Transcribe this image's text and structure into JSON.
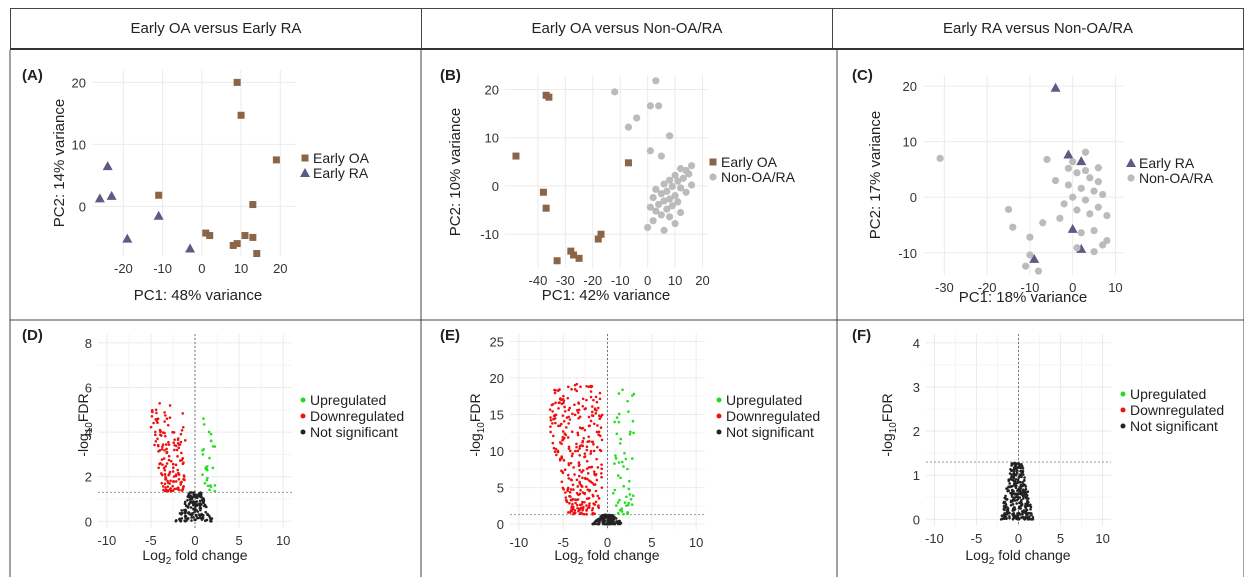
{
  "header": {
    "columns": [
      "Early OA versus Early RA",
      "Early OA versus Non-OA/RA",
      "Early RA versus Non-OA/RA"
    ]
  },
  "colors": {
    "early_oa": "#8B6548",
    "early_ra": "#5E5A85",
    "non_oa_ra": "#BBBBBB",
    "upregulated": "#22DD22",
    "downregulated": "#EE1111",
    "not_significant": "#222222"
  },
  "chart_data": [
    {
      "panel": "(A)",
      "type": "scatter",
      "xlabel": "PC1: 48% variance",
      "ylabel": "PC2: 14% variance",
      "xlim": [
        -28,
        24
      ],
      "ylim": [
        -8,
        22
      ],
      "xticks": [
        -20,
        -10,
        0,
        10,
        20
      ],
      "yticks": [
        0,
        10,
        20
      ],
      "grid": true,
      "legend": "right",
      "series": [
        {
          "name": "Early OA",
          "marker": "square",
          "color_key": "early_oa",
          "points": [
            [
              9,
              20
            ],
            [
              10,
              14.7
            ],
            [
              19,
              7.5
            ],
            [
              -11,
              1.8
            ],
            [
              13,
              0.3
            ],
            [
              1,
              -4.3
            ],
            [
              2,
              -4.7
            ],
            [
              11,
              -4.7
            ],
            [
              13,
              -5
            ],
            [
              9,
              -6
            ],
            [
              8,
              -6.3
            ],
            [
              14,
              -7.6
            ]
          ]
        },
        {
          "name": "Early RA",
          "marker": "triangle",
          "color_key": "early_ra",
          "points": [
            [
              -24,
              6.5
            ],
            [
              -23,
              1.7
            ],
            [
              -26,
              1.3
            ],
            [
              -11,
              -1.5
            ],
            [
              -19,
              -5.2
            ],
            [
              -3,
              -6.8
            ]
          ]
        }
      ]
    },
    {
      "panel": "(B)",
      "type": "scatter",
      "xlabel": "PC1: 42% variance",
      "ylabel": "PC2: 10% variance",
      "xlim": [
        -52,
        22
      ],
      "ylim": [
        -17,
        23
      ],
      "xticks": [
        -40,
        -30,
        -20,
        -10,
        0,
        10,
        20
      ],
      "yticks": [
        -10,
        0,
        10,
        20
      ],
      "grid": true,
      "legend": "right",
      "series": [
        {
          "name": "Early OA",
          "marker": "square",
          "color_key": "early_oa",
          "points": [
            [
              -37,
              18.8
            ],
            [
              -36,
              18.4
            ],
            [
              -48,
              6.2
            ],
            [
              -7,
              4.8
            ],
            [
              -38,
              -1.3
            ],
            [
              -37,
              -4.6
            ],
            [
              -17,
              -10
            ],
            [
              -18,
              -11
            ],
            [
              -28,
              -13.5
            ],
            [
              -27,
              -14.3
            ],
            [
              -33,
              -15.5
            ],
            [
              -25,
              -15
            ]
          ]
        },
        {
          "name": "Non-OA/RA",
          "marker": "circle",
          "color_key": "non_oa_ra",
          "points": [
            [
              3,
              21.8
            ],
            [
              -12,
              19.5
            ],
            [
              1,
              16.6
            ],
            [
              4,
              16.6
            ],
            [
              -4,
              14.1
            ],
            [
              -7,
              12.2
            ],
            [
              8,
              10.4
            ],
            [
              1,
              7.3
            ],
            [
              5,
              6.2
            ],
            [
              16,
              4.2
            ],
            [
              12,
              3.6
            ],
            [
              14,
              3.2
            ],
            [
              15,
              2.5
            ],
            [
              10,
              2.2
            ],
            [
              13,
              1.6
            ],
            [
              8,
              1.2
            ],
            [
              11,
              1
            ],
            [
              6,
              0.4
            ],
            [
              16,
              0.2
            ],
            [
              9,
              -0.1
            ],
            [
              12,
              -0.4
            ],
            [
              3,
              -0.7
            ],
            [
              7,
              -1.1
            ],
            [
              14,
              -1.3
            ],
            [
              5,
              -1.6
            ],
            [
              10,
              -2
            ],
            [
              2,
              -2.4
            ],
            [
              8,
              -2.7
            ],
            [
              6,
              -3.1
            ],
            [
              11,
              -3.3
            ],
            [
              4,
              -3.8
            ],
            [
              9,
              -4.1
            ],
            [
              1,
              -4.4
            ],
            [
              7,
              -4.8
            ],
            [
              3,
              -5.2
            ],
            [
              12,
              -5.5
            ],
            [
              5,
              -6
            ],
            [
              8,
              -6.4
            ],
            [
              2,
              -7.2
            ],
            [
              10,
              -7.8
            ],
            [
              0,
              -8.6
            ],
            [
              6,
              -9.2
            ]
          ]
        }
      ]
    },
    {
      "panel": "(C)",
      "type": "scatter",
      "xlabel": "PC1: 18% variance",
      "ylabel": "PC2: 17% variance",
      "xlim": [
        -35,
        12
      ],
      "ylim": [
        -14,
        22
      ],
      "xticks": [
        -30,
        -20,
        -10,
        0,
        10
      ],
      "yticks": [
        -10,
        0,
        10,
        20
      ],
      "grid": true,
      "legend": "right",
      "series": [
        {
          "name": "Early RA",
          "marker": "triangle",
          "color_key": "early_ra",
          "points": [
            [
              -4,
              19.7
            ],
            [
              -1,
              7.7
            ],
            [
              2,
              6.5
            ],
            [
              0,
              -5.7
            ],
            [
              -9,
              -11.1
            ],
            [
              2,
              -9.3
            ]
          ]
        },
        {
          "name": "Non-OA/RA",
          "marker": "circle",
          "color_key": "non_oa_ra",
          "points": [
            [
              -31,
              7
            ],
            [
              -6,
              6.8
            ],
            [
              3,
              8.1
            ],
            [
              -1,
              5.2
            ],
            [
              1,
              4.4
            ],
            [
              4,
              3.5
            ],
            [
              -4,
              3
            ],
            [
              6,
              2.8
            ],
            [
              -1,
              2.2
            ],
            [
              2,
              1.6
            ],
            [
              5,
              1.1
            ],
            [
              7,
              0.5
            ],
            [
              0,
              0
            ],
            [
              3,
              -0.5
            ],
            [
              -2,
              -1.2
            ],
            [
              6,
              -1.8
            ],
            [
              1,
              -2.3
            ],
            [
              4,
              -3
            ],
            [
              8,
              -3.3
            ],
            [
              -3,
              -3.8
            ],
            [
              -15,
              -2.2
            ],
            [
              -14,
              -5.4
            ],
            [
              5,
              -6
            ],
            [
              2,
              -6.4
            ],
            [
              -10,
              -7.2
            ],
            [
              8,
              -7.8
            ],
            [
              7,
              -8.6
            ],
            [
              1,
              -9.1
            ],
            [
              5,
              -9.8
            ],
            [
              -10,
              -10.4
            ],
            [
              -11,
              -12.4
            ],
            [
              -8,
              -13.3
            ],
            [
              -7,
              -4.6
            ],
            [
              0,
              6.4
            ],
            [
              3,
              4.8
            ],
            [
              6,
              5.3
            ]
          ]
        }
      ]
    },
    {
      "panel": "(D)",
      "type": "volcano",
      "xlabel": "Log₂ fold change",
      "ylabel": "-log₁₀FDR",
      "xlim": [
        -11,
        11
      ],
      "ylim": [
        -0.3,
        8.4
      ],
      "xticks": [
        -10,
        -5,
        0,
        5,
        10
      ],
      "yticks": [
        0,
        2,
        4,
        6,
        8
      ],
      "threshold_y": 1.3,
      "legend": "right",
      "legend_entries": [
        "Upregulated",
        "Downregulated",
        "Not significant"
      ],
      "clusters": {
        "down": {
          "count": 150,
          "x": [
            -5,
            -1.1
          ],
          "y": [
            1.35,
            5.3
          ]
        },
        "up": {
          "count": 28,
          "x": [
            0.8,
            2.3
          ],
          "y": [
            1.35,
            4.9
          ]
        },
        "ns": {
          "count": 160,
          "x": [
            -2.2,
            2.2
          ],
          "y": [
            0,
            1.3
          ]
        }
      }
    },
    {
      "panel": "(E)",
      "type": "volcano",
      "xlabel": "Log₂ fold change",
      "ylabel": "-log₁₀FDR",
      "xlim": [
        -11,
        11
      ],
      "ylim": [
        -0.8,
        26
      ],
      "xticks": [
        -10,
        -5,
        0,
        5,
        10
      ],
      "yticks": [
        0,
        5,
        10,
        15,
        20,
        25
      ],
      "threshold_y": 1.3,
      "legend": "right",
      "legend_entries": [
        "Upregulated",
        "Downregulated",
        "Not significant"
      ],
      "clusters": {
        "down": {
          "count": 320,
          "x": [
            -6.5,
            -0.6
          ],
          "y": [
            1.35,
            19.3
          ]
        },
        "up": {
          "count": 55,
          "x": [
            0.6,
            3
          ],
          "y": [
            1.35,
            18.5
          ]
        },
        "ns": {
          "count": 140,
          "x": [
            -1.8,
            1.8
          ],
          "y": [
            0,
            1.3
          ]
        }
      }
    },
    {
      "panel": "(F)",
      "type": "volcano",
      "xlabel": "Log₂ fold change",
      "ylabel": "-log₁₀FDR",
      "xlim": [
        -11,
        11
      ],
      "ylim": [
        -0.15,
        4.2
      ],
      "xticks": [
        -10,
        -5,
        0,
        5,
        10
      ],
      "yticks": [
        0,
        1,
        2,
        3,
        4
      ],
      "threshold_y": 1.3,
      "legend": "right",
      "legend_entries": [
        "Upregulated",
        "Downregulated",
        "Not significant"
      ],
      "clusters": {
        "ns": {
          "count": 300,
          "x": [
            -2.2,
            1.8
          ],
          "y": [
            0,
            1.28
          ]
        }
      }
    }
  ]
}
